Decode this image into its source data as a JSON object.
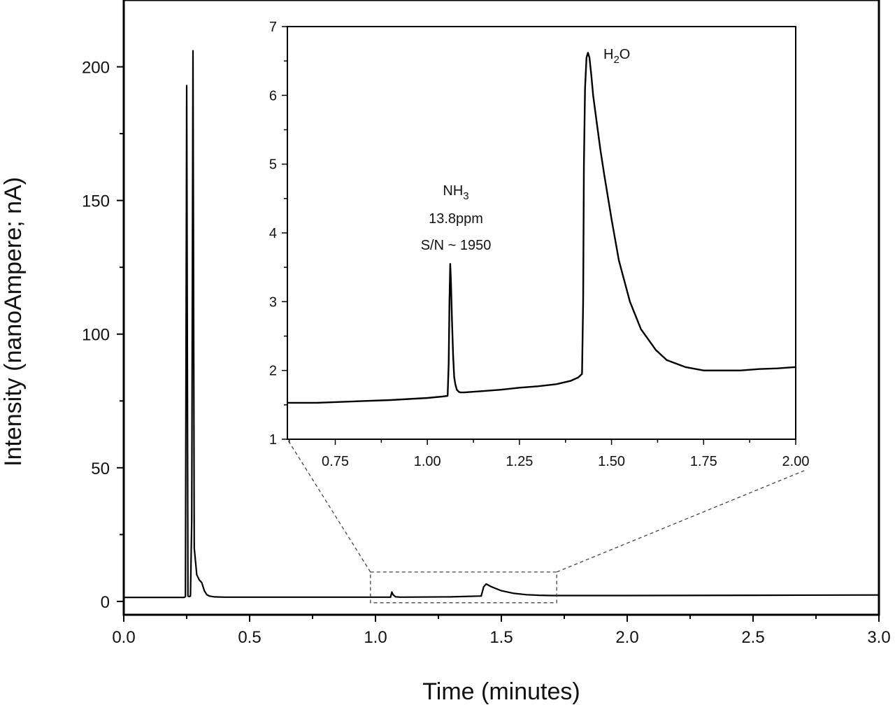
{
  "chart_data": [
    {
      "id": "main",
      "type": "line",
      "xlabel": "Time (minutes)",
      "ylabel": "Intensity (nanoAmpere; nA)",
      "xlim": [
        0.0,
        3.0
      ],
      "ylim": [
        -5,
        225
      ],
      "x_ticks": [
        0.0,
        0.5,
        1.0,
        1.5,
        2.0,
        2.5,
        3.0
      ],
      "x_tick_labels": [
        "0.0",
        "0.5",
        "1.0",
        "1.5",
        "2.0",
        "2.5",
        "3.0"
      ],
      "y_ticks": [
        0,
        50,
        100,
        150,
        200
      ],
      "y_tick_labels": [
        "0",
        "50",
        "100",
        "150",
        "200"
      ],
      "grid": false,
      "series": [
        {
          "x": [
            0.0,
            0.1,
            0.24,
            0.245,
            0.25,
            0.255,
            0.26,
            0.265,
            0.27,
            0.275,
            0.28,
            0.29,
            0.3,
            0.31,
            0.32,
            0.33,
            0.34,
            0.36,
            0.4,
            0.6,
            0.9,
            1.06,
            1.065,
            1.07,
            1.08,
            1.1,
            1.3,
            1.42,
            1.43,
            1.44,
            1.46,
            1.5,
            1.55,
            1.6,
            1.65,
            1.7,
            1.8,
            2.0,
            2.5,
            3.0
          ],
          "y": [
            1.5,
            1.5,
            1.5,
            1.8,
            193,
            2,
            1.8,
            2,
            30,
            206,
            20,
            10,
            8,
            7,
            4,
            2.5,
            2,
            1.7,
            1.6,
            1.6,
            1.6,
            1.6,
            3.5,
            2.5,
            1.7,
            1.6,
            1.7,
            2.0,
            5.5,
            6.5,
            5.5,
            4.0,
            3.0,
            2.5,
            2.3,
            2.2,
            2.2,
            2.2,
            2.3,
            2.4
          ]
        }
      ],
      "zoom_box": {
        "xlim": [
          0.98,
          1.72
        ],
        "ylim": [
          -0.5,
          11
        ]
      }
    },
    {
      "id": "inset",
      "type": "line",
      "xlim": [
        0.62,
        2.0
      ],
      "ylim": [
        1,
        7
      ],
      "x_ticks": [
        0.75,
        1.0,
        1.25,
        1.5,
        1.75,
        2.0
      ],
      "x_tick_labels": [
        "0.75",
        "1.00",
        "1.25",
        "1.50",
        "1.75",
        "2.00"
      ],
      "y_ticks": [
        1,
        2,
        3,
        4,
        5,
        6,
        7
      ],
      "y_tick_labels": [
        "1",
        "2",
        "3",
        "4",
        "5",
        "6",
        "7"
      ],
      "grid": false,
      "series": [
        {
          "x": [
            0.62,
            0.7,
            0.8,
            0.9,
            1.0,
            1.04,
            1.055,
            1.058,
            1.06,
            1.062,
            1.064,
            1.067,
            1.07,
            1.073,
            1.076,
            1.08,
            1.085,
            1.09,
            1.1,
            1.15,
            1.2,
            1.25,
            1.3,
            1.35,
            1.39,
            1.41,
            1.42,
            1.423,
            1.425,
            1.428,
            1.432,
            1.436,
            1.44,
            1.445,
            1.45,
            1.46,
            1.47,
            1.48,
            1.5,
            1.52,
            1.55,
            1.58,
            1.62,
            1.65,
            1.7,
            1.75,
            1.8,
            1.85,
            1.9,
            1.95,
            2.0
          ],
          "y": [
            1.53,
            1.53,
            1.55,
            1.57,
            1.6,
            1.62,
            1.63,
            2.1,
            3.0,
            3.55,
            3.3,
            2.7,
            2.2,
            1.9,
            1.8,
            1.72,
            1.69,
            1.68,
            1.68,
            1.7,
            1.72,
            1.75,
            1.77,
            1.8,
            1.85,
            1.9,
            1.95,
            3.0,
            5.0,
            6.1,
            6.55,
            6.62,
            6.55,
            6.3,
            6.0,
            5.6,
            5.2,
            4.85,
            4.2,
            3.6,
            3.0,
            2.6,
            2.3,
            2.15,
            2.05,
            2.0,
            2.0,
            2.0,
            2.02,
            2.03,
            2.05
          ]
        }
      ],
      "annotations": {
        "nh3_prefix": "NH",
        "nh3_sub": "3",
        "nh3_conc": "13.8ppm",
        "nh3_sn": "S/N ~ 1950",
        "h2o_h": "H",
        "h2o_sub": "2",
        "h2o_o": "O"
      }
    }
  ]
}
